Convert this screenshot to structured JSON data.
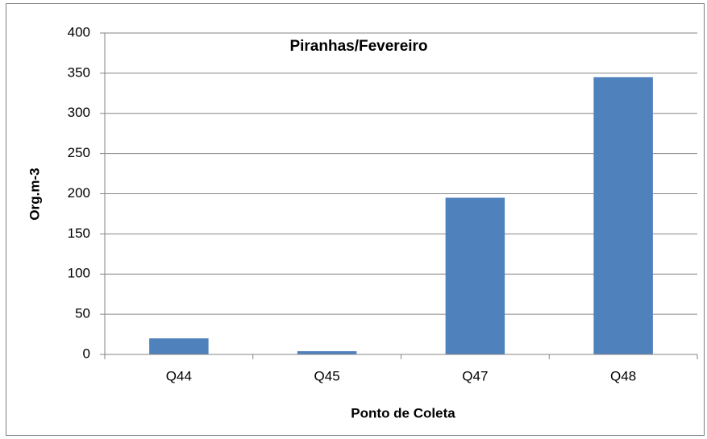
{
  "chart_data": {
    "type": "bar",
    "title": "Piranhas/Fevereiro",
    "x_label": "Ponto de Coleta",
    "y_label": "Org.m-3",
    "categories": [
      "Q44",
      "Q45",
      "Q47",
      "Q48"
    ],
    "values": [
      20,
      4,
      195,
      345
    ],
    "color": "#4f81bd",
    "ylim": [
      0,
      400
    ],
    "yticks": [
      0,
      50,
      100,
      150,
      200,
      250,
      300,
      350,
      400
    ],
    "grid": true
  }
}
